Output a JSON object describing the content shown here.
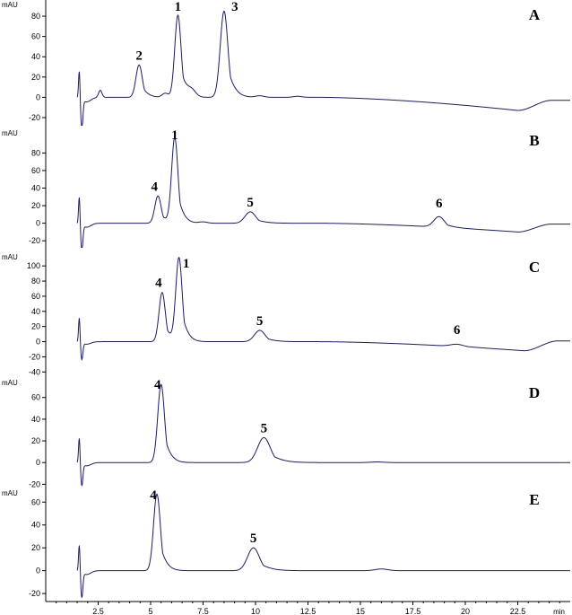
{
  "chart_data": {
    "type": "line",
    "x_unit": "min",
    "x_ticks": [
      "2.5",
      "5",
      "7.5",
      "10",
      "12.5",
      "15",
      "17.5",
      "20",
      "22.5"
    ],
    "xlim": [
      0,
      25
    ],
    "colors": {
      "trace": "#1a1a7a",
      "text": "#000000"
    },
    "panels": [
      {
        "letter": "A",
        "y_unit": "mAU",
        "ylim": [
          -28,
          96
        ],
        "y_ticks": [
          "-20",
          "0",
          "20",
          "40",
          "60",
          "80"
        ],
        "y_tick_values": [
          -20,
          0,
          20,
          40,
          60,
          80
        ],
        "peaks": [
          {
            "label": "2",
            "x": 4.45,
            "y": 32,
            "w": 0.15
          },
          {
            "label": "1",
            "x": 6.3,
            "y": 81,
            "w": 0.15
          },
          {
            "label": "3",
            "x": 8.5,
            "y": 85,
            "w": 0.18
          }
        ],
        "minor_peaks": [
          {
            "x": 2.6,
            "y": 7,
            "w": 0.08
          },
          {
            "x": 5.7,
            "y": 4,
            "w": 0.15
          },
          {
            "x": 6.95,
            "y": 6,
            "w": 0.2
          },
          {
            "x": 10.2,
            "y": 1.5,
            "w": 0.2
          },
          {
            "x": 12.0,
            "y": 1,
            "w": 0.2
          }
        ],
        "injection": {
          "x": 1.6,
          "up": 28,
          "down": -30
        },
        "drift": {
          "start": 13,
          "end": 22.5,
          "depth": -13,
          "end_level": -3
        }
      },
      {
        "letter": "B",
        "y_unit": "mAU",
        "ylim": [
          -28,
          108
        ],
        "y_ticks": [
          "-20",
          "0",
          "20",
          "40",
          "60",
          "80"
        ],
        "y_tick_values": [
          -20,
          0,
          20,
          40,
          60,
          80
        ],
        "peaks": [
          {
            "label": "4",
            "x": 5.35,
            "y": 31,
            "w": 0.15
          },
          {
            "label": "1",
            "x": 6.15,
            "y": 97,
            "w": 0.15
          },
          {
            "label": "5",
            "x": 9.75,
            "y": 13,
            "w": 0.25
          },
          {
            "label": "6",
            "x": 18.75,
            "y": 12,
            "w": 0.25
          }
        ],
        "minor_peaks": [
          {
            "x": 7.5,
            "y": 1.5,
            "w": 0.2
          }
        ],
        "injection": {
          "x": 1.6,
          "up": 32,
          "down": -30
        },
        "drift": {
          "start": 13,
          "end": 22.5,
          "depth": -10,
          "end_level": -1
        }
      },
      {
        "letter": "C",
        "y_unit": "mAU",
        "ylim": [
          -42,
          118
        ],
        "y_ticks": [
          "-40",
          "-20",
          "0",
          "20",
          "40",
          "60",
          "80",
          "100"
        ],
        "y_tick_values": [
          -40,
          -20,
          0,
          20,
          40,
          60,
          80,
          100
        ],
        "peaks": [
          {
            "label": "4",
            "x": 5.55,
            "y": 65,
            "w": 0.15
          },
          {
            "label": "1",
            "x": 6.35,
            "y": 110,
            "w": 0.15
          },
          {
            "label": "5",
            "x": 10.2,
            "y": 15,
            "w": 0.25
          },
          {
            "label": "6",
            "x": 19.6,
            "y": 3,
            "w": 0.3
          }
        ],
        "minor_peaks": [],
        "injection": {
          "x": 1.6,
          "up": 33,
          "down": -22
        },
        "drift": {
          "start": 13,
          "end": 22.8,
          "depth": -12,
          "end_level": 1
        }
      },
      {
        "letter": "D",
        "y_unit": "mAU",
        "ylim": [
          -23,
          78
        ],
        "y_ticks": [
          "-20",
          "0",
          "20",
          "40",
          "60"
        ],
        "y_tick_values": [
          -20,
          0,
          20,
          40,
          60
        ],
        "peaks": [
          {
            "label": "4",
            "x": 5.5,
            "y": 72,
            "w": 0.16
          },
          {
            "label": "5",
            "x": 10.4,
            "y": 23,
            "w": 0.3
          }
        ],
        "minor_peaks": [
          {
            "x": 15.8,
            "y": 0.6,
            "w": 0.3
          }
        ],
        "injection": {
          "x": 1.6,
          "up": 24,
          "down": -20
        },
        "drift": null
      },
      {
        "letter": "E",
        "y_unit": "mAU",
        "ylim": [
          -27,
          72
        ],
        "y_ticks": [
          "-20",
          "0",
          "20",
          "40",
          "60"
        ],
        "y_tick_values": [
          -20,
          0,
          20,
          40,
          60
        ],
        "peaks": [
          {
            "label": "4",
            "x": 5.3,
            "y": 67,
            "w": 0.16
          },
          {
            "label": "5",
            "x": 9.9,
            "y": 20,
            "w": 0.28
          }
        ],
        "minor_peaks": [
          {
            "x": 16.0,
            "y": 1.5,
            "w": 0.3
          }
        ],
        "injection": {
          "x": 1.6,
          "up": 24,
          "down": -22
        },
        "drift": null
      }
    ]
  }
}
